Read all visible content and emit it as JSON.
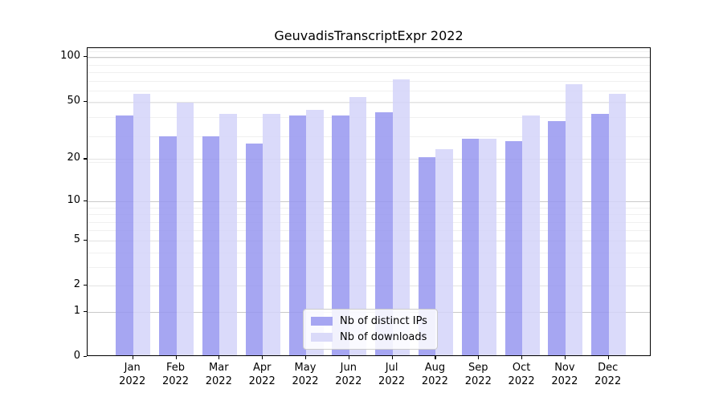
{
  "chart_data": {
    "type": "bar",
    "title": "GeuvadisTranscriptExpr 2022",
    "categories": [
      "Jan 2022",
      "Feb 2022",
      "Mar 2022",
      "Apr 2022",
      "May 2022",
      "Jun 2022",
      "Jul 2022",
      "Aug 2022",
      "Sep 2022",
      "Oct 2022",
      "Nov 2022",
      "Dec 2022"
    ],
    "series": [
      {
        "name": "Nb of distinct IPs",
        "color": "#a6a6f2",
        "bar_fill": "rgba(151,151,240,0.85)",
        "values": [
          39,
          28,
          28,
          25,
          39,
          39,
          41,
          20,
          27,
          26,
          36,
          40
        ]
      },
      {
        "name": "Nb of downloads",
        "color": "#dadaf9",
        "bar_fill": "rgba(211,211,249,0.85)",
        "values": [
          55,
          48,
          40,
          40,
          43,
          52,
          69,
          23,
          27,
          39,
          64,
          55
        ]
      }
    ],
    "yscale": "log10(1+y)",
    "ylim": [
      0,
      115
    ],
    "yticks": [
      0,
      1,
      2,
      5,
      10,
      20,
      50,
      100
    ],
    "decade_gridline_values": [
      1,
      10,
      100
    ],
    "mid_gridline_values": [
      2,
      5,
      20,
      50
    ],
    "minor_gridline_values": [
      3,
      4,
      6,
      7,
      8,
      9,
      19,
      29,
      39,
      49,
      59,
      69,
      79,
      89,
      99,
      109
    ],
    "grid": true,
    "legend_position": "lower center"
  }
}
